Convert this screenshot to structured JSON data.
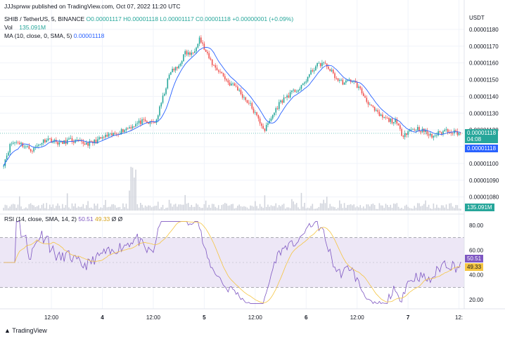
{
  "publish_line": "JJJsprww published on TradingView.com, Oct 07, 2022 11:20 UTC",
  "symbol_line": {
    "symbol": "SHIB / TetherUS, 5, BINANCE",
    "ohlc": "O0.00001117 H0.00001118 L0.00001117 C0.00001118 +0.00000001 (+0.09%)"
  },
  "vol_line": {
    "label": "Vol",
    "value": "135.091M"
  },
  "ma_line": {
    "label": "MA (10, close, 0, SMA, 5)",
    "value": "0.00001118"
  },
  "rsi_line": {
    "label": "RSI (14, close, SMA, 14, 2)",
    "rsi": "50.51",
    "sma": "49.33",
    "extra": "Ø Ø"
  },
  "currency": "USDT",
  "price_tags": {
    "last": "0.00001118",
    "countdown": "04:08",
    "ma": "0.00001118",
    "volume": "135.091M"
  },
  "rsi_tags": {
    "rsi": "50.51",
    "sma": "49.33"
  },
  "footer": {
    "brand": "TradingView"
  },
  "colors": {
    "up": "#26a69a",
    "down": "#ef5350",
    "ma": "#2962ff",
    "rsi": "#7e57c2",
    "rsi_sma": "#f5c542",
    "rsi_band": "#ede7f6",
    "volume": "#d1d4dc",
    "grid": "#f0f3fa"
  },
  "chart_data": [
    {
      "type": "candlestick",
      "title": "SHIB / TetherUS, 5, BINANCE",
      "ylabel": "USDT",
      "ylim": [
        1.074e-05,
        1.185e-05
      ],
      "y_ticks": [
        "0.00001180",
        "0.00001170",
        "0.00001160",
        "0.00001150",
        "0.00001140",
        "0.00001130",
        "0.00001120",
        "0.00001110",
        "0.00001100",
        "0.00001090",
        "0.00001080"
      ],
      "y_tick_values": [
        1.18e-05,
        1.17e-05,
        1.16e-05,
        1.15e-05,
        1.14e-05,
        1.13e-05,
        1.12e-05,
        1.11e-05,
        1.1e-05,
        1.09e-05,
        1.08e-05
      ],
      "x_ticks": [
        "12:00",
        "4",
        "12:00",
        "5",
        "12:00",
        "6",
        "12:00",
        "7",
        "12:"
      ],
      "x_tick_index": [
        30,
        62,
        94,
        126,
        158,
        190,
        222,
        254,
        286
      ],
      "last_close": 1.118e-05,
      "series": [
        {
          "name": "SHIB / TetherUS",
          "kind": "close_path",
          "values": [
            1.1e-05,
            1.112e-05,
            1.113e-05,
            1.11e-05,
            1.108e-05,
            1.112e-05,
            1.115e-05,
            1.113e-05,
            1.112e-05,
            1.114e-05,
            1.113e-05,
            1.112e-05,
            1.112e-05,
            1.114e-05,
            1.116e-05,
            1.117e-05,
            1.119e-05,
            1.121e-05,
            1.123e-05,
            1.125e-05,
            1.124e-05,
            1.125e-05,
            1.14e-05,
            1.155e-05,
            1.157e-05,
            1.166e-05,
            1.165e-05,
            1.175e-05,
            1.165e-05,
            1.158e-05,
            1.154e-05,
            1.148e-05,
            1.146e-05,
            1.14e-05,
            1.135e-05,
            1.127e-05,
            1.12e-05,
            1.128e-05,
            1.136e-05,
            1.14e-05,
            1.143e-05,
            1.145e-05,
            1.152e-05,
            1.158e-05,
            1.16e-05,
            1.156e-05,
            1.15e-05,
            1.148e-05,
            1.15e-05,
            1.145e-05,
            1.138e-05,
            1.132e-05,
            1.128e-05,
            1.126e-05,
            1.125e-05,
            1.117e-05,
            1.12e-05,
            1.121e-05,
            1.119e-05,
            1.116e-05,
            1.118e-05,
            1.12e-05,
            1.119e-05,
            1.118e-05
          ]
        },
        {
          "name": "MA (10, close, 0, SMA, 5)",
          "kind": "line"
        }
      ]
    },
    {
      "type": "bar",
      "title": "Vol",
      "last_value": "135.091M"
    },
    {
      "type": "line",
      "title": "RSI (14, close, SMA, 14, 2)",
      "ylim": [
        15,
        85
      ],
      "y_ticks": [
        "80.00",
        "60.00",
        "40.00",
        "20.00"
      ],
      "y_tick_values": [
        80,
        60,
        40,
        20
      ],
      "bands": [
        30,
        70
      ],
      "series": [
        {
          "name": "RSI",
          "last": 50.51
        },
        {
          "name": "SMA",
          "last": 49.33
        }
      ]
    }
  ]
}
